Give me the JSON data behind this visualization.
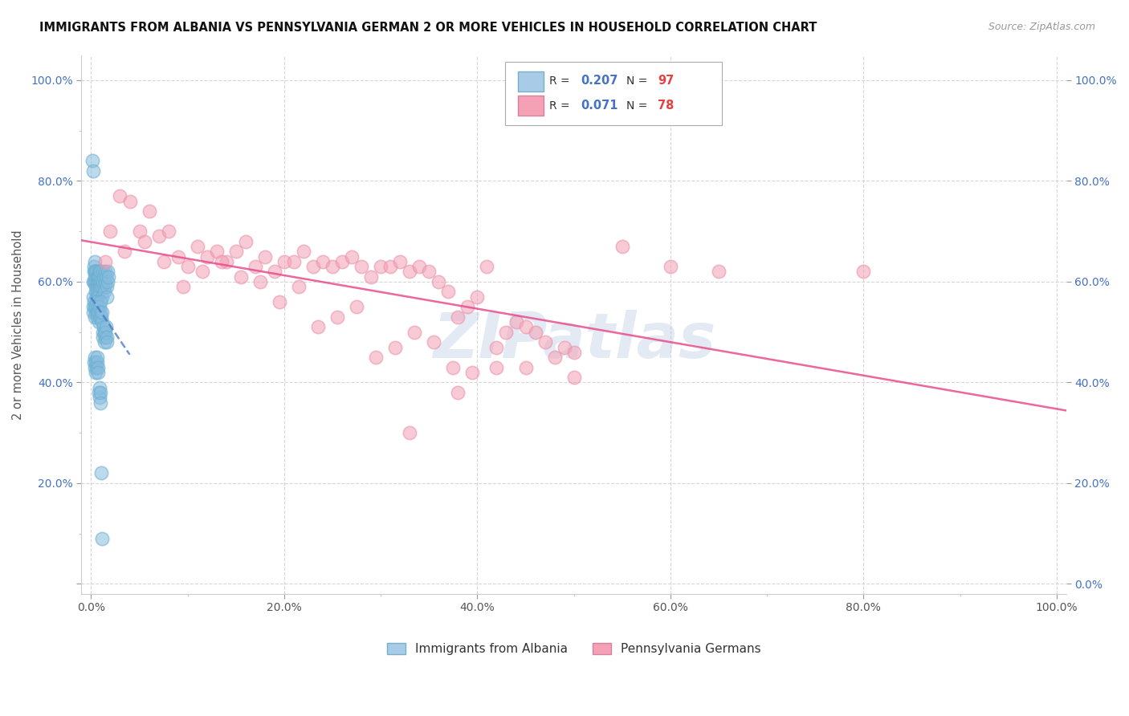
{
  "title": "IMMIGRANTS FROM ALBANIA VS PENNSYLVANIA GERMAN 2 OR MORE VEHICLES IN HOUSEHOLD CORRELATION CHART",
  "source": "Source: ZipAtlas.com",
  "ylabel": "2 or more Vehicles in Household",
  "scatter_blue_color": "#87BCDE",
  "scatter_pink_color": "#F4A0B5",
  "blue_line_color": "#4472C4",
  "pink_line_color": "#E84C8B",
  "watermark": "ZIPatlas",
  "background_color": "#FFFFFF",
  "grid_color": "#CCCCCC",
  "R_blue": 0.207,
  "N_blue": 97,
  "R_pink": 0.071,
  "N_pink": 78,
  "legend_blue": "Immigrants from Albania",
  "legend_pink": "Pennsylvania Germans",
  "xlim": [
    0,
    100
  ],
  "ylim": [
    0,
    100
  ],
  "blue_x": [
    0.15,
    0.18,
    0.22,
    0.25,
    0.28,
    0.3,
    0.32,
    0.35,
    0.38,
    0.4,
    0.42,
    0.45,
    0.48,
    0.5,
    0.52,
    0.55,
    0.58,
    0.6,
    0.62,
    0.65,
    0.68,
    0.7,
    0.72,
    0.75,
    0.78,
    0.8,
    0.82,
    0.85,
    0.88,
    0.9,
    0.92,
    0.95,
    0.98,
    1.0,
    1.05,
    1.1,
    1.15,
    1.2,
    1.25,
    1.3,
    1.35,
    1.4,
    1.45,
    1.5,
    1.55,
    1.6,
    1.65,
    1.7,
    1.75,
    1.8,
    0.2,
    0.25,
    0.3,
    0.35,
    0.4,
    0.45,
    0.5,
    0.55,
    0.6,
    0.65,
    0.7,
    0.75,
    0.8,
    0.85,
    0.9,
    0.95,
    1.0,
    1.05,
    1.1,
    1.15,
    1.2,
    1.25,
    1.3,
    1.35,
    1.4,
    1.45,
    1.5,
    1.55,
    1.6,
    1.65,
    0.3,
    0.35,
    0.4,
    0.45,
    0.5,
    0.55,
    0.6,
    0.65,
    0.7,
    0.75,
    0.8,
    0.85,
    0.9,
    0.95,
    1.0,
    1.05,
    1.1
  ],
  "blue_y": [
    84,
    82,
    60,
    57,
    60,
    62,
    63,
    64,
    62,
    61,
    60,
    62,
    58,
    59,
    57,
    60,
    62,
    61,
    59,
    58,
    60,
    61,
    59,
    57,
    62,
    60,
    61,
    59,
    58,
    62,
    60,
    61,
    59,
    62,
    60,
    59,
    57,
    60,
    62,
    61,
    59,
    58,
    60,
    62,
    61,
    59,
    57,
    60,
    62,
    61,
    55,
    54,
    56,
    55,
    53,
    54,
    55,
    56,
    54,
    53,
    55,
    54,
    52,
    53,
    55,
    56,
    54,
    53,
    52,
    54,
    50,
    49,
    51,
    50,
    48,
    49,
    50,
    51,
    49,
    48,
    44,
    43,
    45,
    44,
    42,
    43,
    44,
    45,
    43,
    42,
    38,
    37,
    39,
    38,
    36,
    22,
    9
  ],
  "pink_x": [
    1.5,
    2.0,
    3.0,
    4.0,
    5.0,
    6.0,
    7.0,
    8.0,
    9.0,
    10.0,
    11.0,
    12.0,
    13.0,
    14.0,
    15.0,
    16.0,
    17.0,
    18.0,
    19.0,
    20.0,
    21.0,
    22.0,
    23.0,
    24.0,
    25.0,
    26.0,
    27.0,
    28.0,
    29.0,
    30.0,
    31.0,
    32.0,
    33.0,
    34.0,
    35.0,
    36.0,
    37.0,
    38.0,
    39.0,
    40.0,
    41.0,
    42.0,
    43.0,
    44.0,
    45.0,
    46.0,
    47.0,
    48.0,
    49.0,
    50.0,
    3.5,
    5.5,
    7.5,
    9.5,
    11.5,
    13.5,
    15.5,
    17.5,
    19.5,
    21.5,
    23.5,
    25.5,
    27.5,
    29.5,
    31.5,
    33.5,
    35.5,
    37.5,
    39.5,
    55.0,
    60.0,
    65.0,
    80.0,
    50.0,
    45.0,
    42.0,
    38.0,
    33.0
  ],
  "pink_y": [
    64,
    70,
    77,
    76,
    70,
    74,
    69,
    70,
    65,
    63,
    67,
    65,
    66,
    64,
    66,
    68,
    63,
    65,
    62,
    64,
    64,
    66,
    63,
    64,
    63,
    64,
    65,
    63,
    61,
    63,
    63,
    64,
    62,
    63,
    62,
    60,
    58,
    53,
    55,
    57,
    63,
    47,
    50,
    52,
    51,
    50,
    48,
    45,
    47,
    41,
    66,
    68,
    64,
    59,
    62,
    64,
    61,
    60,
    56,
    59,
    51,
    53,
    55,
    45,
    47,
    50,
    48,
    43,
    42,
    67,
    63,
    62,
    62,
    46,
    43,
    43,
    38,
    30
  ]
}
